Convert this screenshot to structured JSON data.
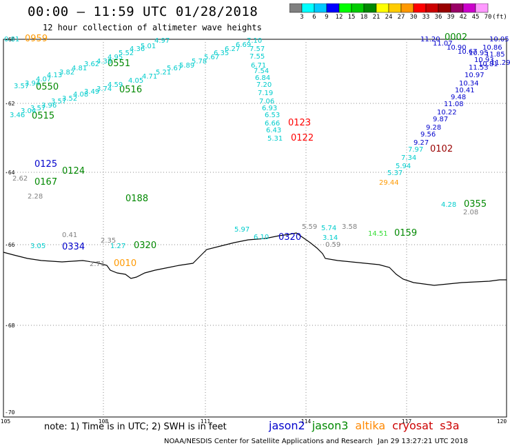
{
  "header": {
    "title": "00:00 – 11:59 UTC 01/28/2018",
    "subtitle": "12 hour collection of altimeter wave heights"
  },
  "scale": {
    "ticks": [
      "3",
      "6",
      "9",
      "12",
      "15",
      "18",
      "21",
      "24",
      "27",
      "30",
      "33",
      "36",
      "39",
      "42",
      "45",
      "70"
    ],
    "unit": "(ft)",
    "colors": [
      "#808080",
      "#00ffff",
      "#00c8ff",
      "#0000ff",
      "#00ff00",
      "#00cc00",
      "#008800",
      "#ffff00",
      "#ffcc00",
      "#ff9900",
      "#ff0000",
      "#cc0000",
      "#990000",
      "#990066",
      "#cc00cc",
      "#ff99ff"
    ]
  },
  "axes": {
    "lat_labels": [
      "-60",
      "-62",
      "-64",
      "-66",
      "-68",
      "-70"
    ],
    "lon_labels": [
      "105",
      "108",
      "111",
      "114",
      "117",
      "120"
    ]
  },
  "footer": {
    "note": "note:  1) Time is in UTC;  2) SWH is in feet",
    "satellites": [
      {
        "name": "jason2",
        "color": "#0000cc"
      },
      {
        "name": "jason3",
        "color": "#008800"
      },
      {
        "name": "altika",
        "color": "#ff8800"
      },
      {
        "name": "cryosat",
        "color": "#cc0000"
      },
      {
        "name": "s3a",
        "color": "#cc0000"
      }
    ],
    "credit": "NOAA/NESDIS Center for Satellite Applications and Research",
    "timestamp": "Jan 29 13:27:21 UTC 2018"
  },
  "track_times": [
    {
      "label": "0959",
      "color": "#ff9900"
    },
    {
      "label": "0551",
      "color": "#008800"
    },
    {
      "label": "0550",
      "color": "#008800"
    },
    {
      "label": "0516",
      "color": "#008800"
    },
    {
      "label": "0515",
      "color": "#008800"
    },
    {
      "label": "0123",
      "color": "#ff0000"
    },
    {
      "label": "0122",
      "color": "#ff0000"
    },
    {
      "label": "0002",
      "color": "#008800"
    },
    {
      "label": "0102",
      "color": "#990000"
    },
    {
      "label": "0355",
      "color": "#008800"
    },
    {
      "label": "0320",
      "color": "#008800"
    },
    {
      "label": "0010",
      "color": "#ff9900"
    },
    {
      "label": "0159",
      "color": "#008800"
    },
    {
      "label": "0320",
      "color": "#0000cc"
    },
    {
      "label": "0167",
      "color": "#008800"
    },
    {
      "label": "0188",
      "color": "#008800"
    },
    {
      "label": "0125",
      "color": "#0000cc"
    },
    {
      "label": "0124",
      "color": "#008800"
    },
    {
      "label": "0334",
      "color": "#0000cc"
    }
  ],
  "wave_values": [
    {
      "v": "0.81",
      "c": "#00cccc"
    },
    {
      "v": "3.57",
      "c": "#00cccc"
    },
    {
      "v": "3.94",
      "c": "#00cccc"
    },
    {
      "v": "4.07",
      "c": "#00cccc"
    },
    {
      "v": "4.13",
      "c": "#00cccc"
    },
    {
      "v": "3.82",
      "c": "#00cccc"
    },
    {
      "v": "4.81",
      "c": "#00cccc"
    },
    {
      "v": "3.62",
      "c": "#00cccc"
    },
    {
      "v": "4.38",
      "c": "#00cccc"
    },
    {
      "v": "4.95",
      "c": "#00cccc"
    },
    {
      "v": "5.52",
      "c": "#00cccc"
    },
    {
      "v": "4.36",
      "c": "#00cccc"
    },
    {
      "v": "5.01",
      "c": "#00cccc"
    },
    {
      "v": "4.97",
      "c": "#00cccc"
    },
    {
      "v": "3.46",
      "c": "#00cccc"
    },
    {
      "v": "3.04",
      "c": "#00cccc"
    },
    {
      "v": "3.57",
      "c": "#00cccc"
    },
    {
      "v": "3.96",
      "c": "#00cccc"
    },
    {
      "v": "3.57",
      "c": "#00cccc"
    },
    {
      "v": "3.52",
      "c": "#00cccc"
    },
    {
      "v": "4.08",
      "c": "#00cccc"
    },
    {
      "v": "3.49",
      "c": "#00cccc"
    },
    {
      "v": "3.74",
      "c": "#00cccc"
    },
    {
      "v": "4.59",
      "c": "#00cccc"
    },
    {
      "v": "4.05",
      "c": "#00cccc"
    },
    {
      "v": "4.71",
      "c": "#00cccc"
    },
    {
      "v": "5.21",
      "c": "#00cccc"
    },
    {
      "v": "5.67",
      "c": "#00cccc"
    },
    {
      "v": "5.89",
      "c": "#00cccc"
    },
    {
      "v": "5.78",
      "c": "#00cccc"
    },
    {
      "v": "5.67",
      "c": "#00cccc"
    },
    {
      "v": "6.35",
      "c": "#00cccc"
    },
    {
      "v": "6.27",
      "c": "#00cccc"
    },
    {
      "v": "6.69",
      "c": "#00cccc"
    },
    {
      "v": "7.10",
      "c": "#00cccc"
    },
    {
      "v": "7.57",
      "c": "#00cccc"
    },
    {
      "v": "7.55",
      "c": "#00cccc"
    },
    {
      "v": "6.71",
      "c": "#00cccc"
    },
    {
      "v": "7.54",
      "c": "#00cccc"
    },
    {
      "v": "6.84",
      "c": "#00cccc"
    },
    {
      "v": "7.20",
      "c": "#00cccc"
    },
    {
      "v": "7.19",
      "c": "#00cccc"
    },
    {
      "v": "7.06",
      "c": "#00cccc"
    },
    {
      "v": "6.93",
      "c": "#00cccc"
    },
    {
      "v": "6.53",
      "c": "#00cccc"
    },
    {
      "v": "6.66",
      "c": "#00cccc"
    },
    {
      "v": "6.43",
      "c": "#00cccc"
    },
    {
      "v": "5.31",
      "c": "#00cccc"
    },
    {
      "v": "11.20",
      "c": "#0000cc"
    },
    {
      "v": "11.07",
      "c": "#0000cc"
    },
    {
      "v": "10.90",
      "c": "#0000cc"
    },
    {
      "v": "10.67",
      "c": "#0000cc"
    },
    {
      "v": "10.95",
      "c": "#0000cc"
    },
    {
      "v": "10.86",
      "c": "#0000cc"
    },
    {
      "v": "11.85",
      "c": "#0000cc"
    },
    {
      "v": "10.93",
      "c": "#0000cc"
    },
    {
      "v": "10.81",
      "c": "#0000cc"
    },
    {
      "v": "11.29",
      "c": "#0000cc"
    },
    {
      "v": "11.53",
      "c": "#0000cc"
    },
    {
      "v": "10.97",
      "c": "#0000cc"
    },
    {
      "v": "10.34",
      "c": "#0000cc"
    },
    {
      "v": "10.41",
      "c": "#0000cc"
    },
    {
      "v": "9.48",
      "c": "#0000cc"
    },
    {
      "v": "11.08",
      "c": "#0000cc"
    },
    {
      "v": "10.22",
      "c": "#0000cc"
    },
    {
      "v": "9.87",
      "c": "#0000cc"
    },
    {
      "v": "9.28",
      "c": "#0000cc"
    },
    {
      "v": "9.56",
      "c": "#0000cc"
    },
    {
      "v": "9.27",
      "c": "#0000cc"
    },
    {
      "v": "10.05",
      "c": "#0000cc"
    },
    {
      "v": "7.97",
      "c": "#00cccc"
    },
    {
      "v": "7.34",
      "c": "#00cccc"
    },
    {
      "v": "5.94",
      "c": "#00cccc"
    },
    {
      "v": "5.37",
      "c": "#00cccc"
    },
    {
      "v": "29.44",
      "c": "#ff9900"
    },
    {
      "v": "4.28",
      "c": "#00cccc"
    },
    {
      "v": "2.08",
      "c": "#808080"
    },
    {
      "v": "5.97",
      "c": "#00cccc"
    },
    {
      "v": "6.10",
      "c": "#00cccc"
    },
    {
      "v": "5.59",
      "c": "#808080"
    },
    {
      "v": "5.74",
      "c": "#00cccc"
    },
    {
      "v": "3.14",
      "c": "#00cccc"
    },
    {
      "v": "3.58",
      "c": "#808080"
    },
    {
      "v": "0.59",
      "c": "#808080"
    },
    {
      "v": "14.51",
      "c": "#33dd33"
    },
    {
      "v": "2.62",
      "c": "#808080"
    },
    {
      "v": "2.28",
      "c": "#808080"
    },
    {
      "v": "0.41",
      "c": "#808080"
    },
    {
      "v": "3.05",
      "c": "#00cccc"
    },
    {
      "v": "2.35",
      "c": "#808080"
    },
    {
      "v": "2.71",
      "c": "#808080"
    },
    {
      "v": "1.27",
      "c": "#00cccc"
    }
  ]
}
